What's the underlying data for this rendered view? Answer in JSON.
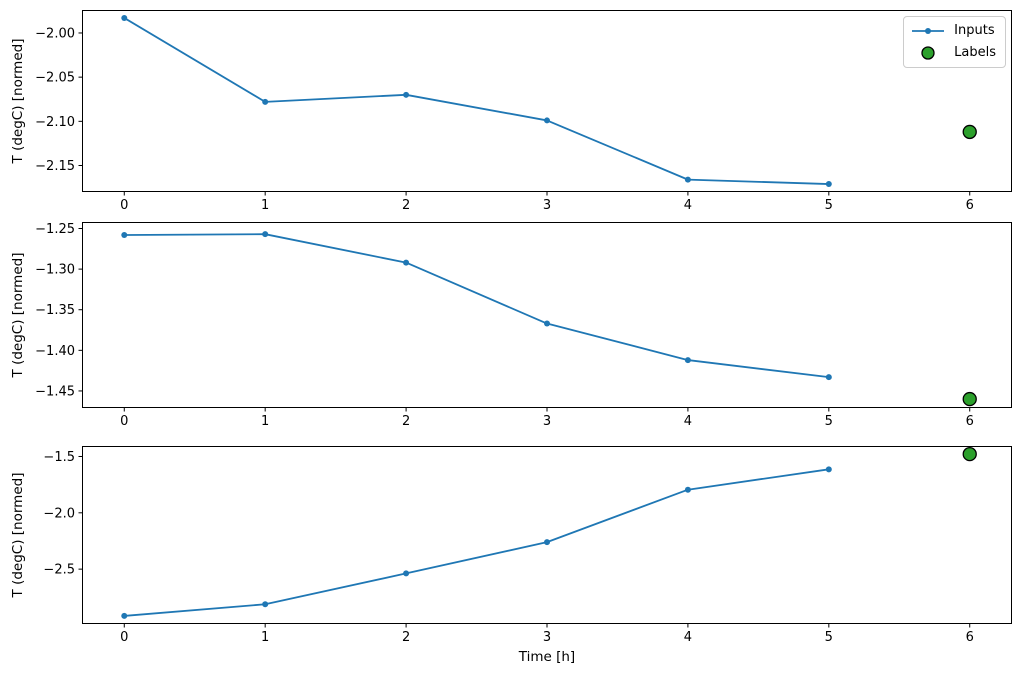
{
  "figure": {
    "xlabel": "Time [h]",
    "background": "#ffffff",
    "colors": {
      "inputs_line": "#1f77b4",
      "labels_fill": "#2ca02c",
      "labels_edge": "#000000",
      "axis": "#000000",
      "legend_border": "#cccccc"
    }
  },
  "legend": {
    "position": "upper right",
    "items": [
      {
        "label": "Inputs",
        "swatch": "line-dot-icon"
      },
      {
        "label": "Labels",
        "swatch": "green-circle-icon"
      }
    ]
  },
  "chart_data": [
    {
      "type": "line",
      "title": "",
      "xlabel": "",
      "ylabel": "T (degC) [normed]",
      "grid": false,
      "xlim": [
        -0.3,
        6.3
      ],
      "ylim": [
        -2.18,
        -1.974
      ],
      "xticks": [
        0,
        1,
        2,
        3,
        4,
        5,
        6
      ],
      "xtick_labels": [
        "0",
        "1",
        "2",
        "3",
        "4",
        "5",
        "6"
      ],
      "ytick_values": [
        -2.0,
        -2.05,
        -2.1,
        -2.15
      ],
      "ytick_labels": [
        "−2.00",
        "−2.05",
        "−2.10",
        "−2.15"
      ],
      "x": [
        0,
        1,
        2,
        3,
        4,
        5
      ],
      "series": [
        {
          "name": "Inputs",
          "kind": "line",
          "marker": "dot",
          "color": "#1f77b4",
          "values": [
            -1.983,
            -2.078,
            -2.07,
            -2.099,
            -2.166,
            -2.171
          ]
        },
        {
          "name": "Labels",
          "kind": "scatter",
          "marker": "circle",
          "color": "#2ca02c",
          "edge_color": "#000000",
          "x": [
            6
          ],
          "values": [
            -2.112
          ]
        }
      ]
    },
    {
      "type": "line",
      "title": "",
      "xlabel": "",
      "ylabel": "T (degC) [normed]",
      "grid": false,
      "xlim": [
        -0.3,
        6.3
      ],
      "ylim": [
        -1.471,
        -1.242
      ],
      "xticks": [
        0,
        1,
        2,
        3,
        4,
        5,
        6
      ],
      "xtick_labels": [
        "0",
        "1",
        "2",
        "3",
        "4",
        "5",
        "6"
      ],
      "ytick_values": [
        -1.25,
        -1.3,
        -1.35,
        -1.4,
        -1.45
      ],
      "ytick_labels": [
        "−1.25",
        "−1.30",
        "−1.35",
        "−1.40",
        "−1.45"
      ],
      "x": [
        0,
        1,
        2,
        3,
        4,
        5
      ],
      "series": [
        {
          "name": "Inputs",
          "kind": "line",
          "marker": "dot",
          "color": "#1f77b4",
          "values": [
            -1.258,
            -1.257,
            -1.292,
            -1.367,
            -1.412,
            -1.433
          ]
        },
        {
          "name": "Labels",
          "kind": "scatter",
          "marker": "circle",
          "color": "#2ca02c",
          "edge_color": "#000000",
          "x": [
            6
          ],
          "values": [
            -1.46
          ]
        }
      ]
    },
    {
      "type": "line",
      "title": "",
      "xlabel": "Time [h]",
      "ylabel": "T (degC) [normed]",
      "grid": false,
      "xlim": [
        -0.3,
        6.3
      ],
      "ylim": [
        -2.987,
        -1.407
      ],
      "xticks": [
        0,
        1,
        2,
        3,
        4,
        5,
        6
      ],
      "xtick_labels": [
        "0",
        "1",
        "2",
        "3",
        "4",
        "5",
        "6"
      ],
      "ytick_values": [
        -1.5,
        -2.0,
        -2.5
      ],
      "ytick_labels": [
        "−1.5",
        "−2.0",
        "−2.5"
      ],
      "x": [
        0,
        1,
        2,
        3,
        4,
        5
      ],
      "series": [
        {
          "name": "Inputs",
          "kind": "line",
          "marker": "dot",
          "color": "#1f77b4",
          "values": [
            -2.915,
            -2.812,
            -2.538,
            -2.26,
            -1.795,
            -1.614
          ]
        },
        {
          "name": "Labels",
          "kind": "scatter",
          "marker": "circle",
          "color": "#2ca02c",
          "edge_color": "#000000",
          "x": [
            6
          ],
          "values": [
            -1.479
          ]
        }
      ]
    }
  ]
}
